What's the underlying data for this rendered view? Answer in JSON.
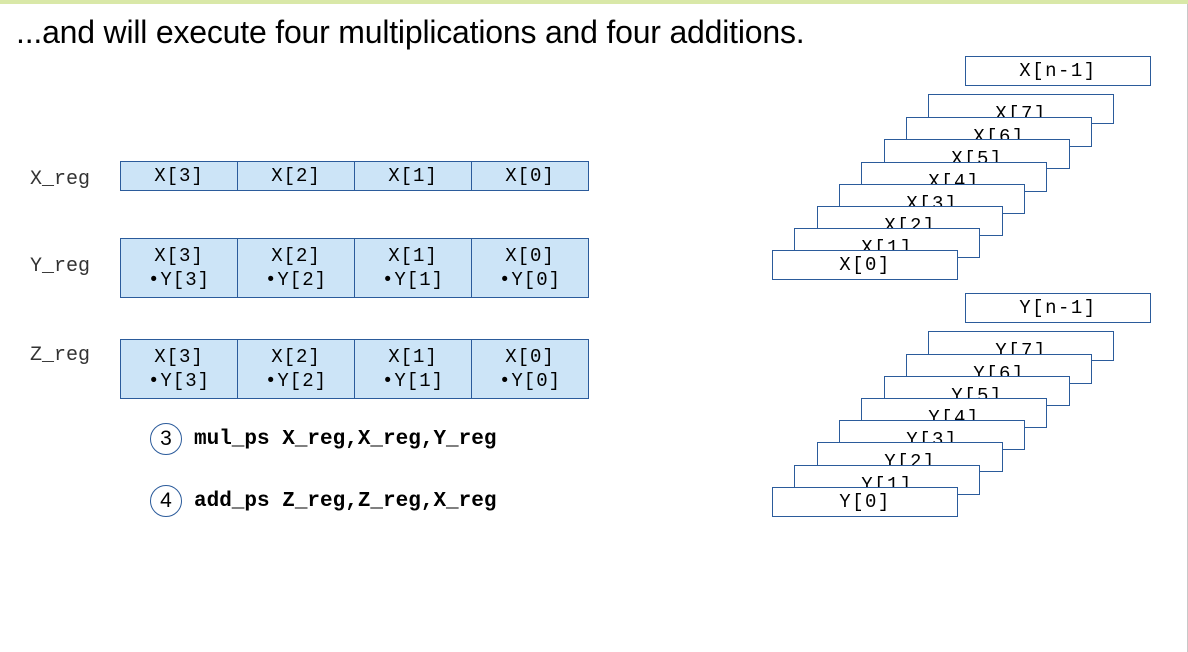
{
  "title": "...and will execute four multiplications and four additions.",
  "registers": [
    {
      "name": "X_reg",
      "cells": [
        [
          "X[3]"
        ],
        [
          "X[2]"
        ],
        [
          "X[1]"
        ],
        [
          "X[0]"
        ]
      ]
    },
    {
      "name": "Y_reg",
      "cells": [
        [
          "X[3]",
          "•Y[3]"
        ],
        [
          "X[2]",
          "•Y[2]"
        ],
        [
          "X[1]",
          "•Y[1]"
        ],
        [
          "X[0]",
          "•Y[0]"
        ]
      ]
    },
    {
      "name": "Z_reg",
      "cells": [
        [
          "X[3]",
          "•Y[3]"
        ],
        [
          "X[2]",
          "•Y[2]"
        ],
        [
          "X[1]",
          "•Y[1]"
        ],
        [
          "X[0]",
          "•Y[0]"
        ]
      ]
    }
  ],
  "steps": [
    {
      "num": "3",
      "code": "mul_ps X_reg,X_reg,Y_reg"
    },
    {
      "num": "4",
      "code": "add_ps Z_reg,Z_reg,X_reg"
    }
  ],
  "x_memory": {
    "top": "X[n-1]",
    "stack": [
      "X[7]",
      "X[6]",
      "X[5]",
      "X[4]",
      "X[3]",
      "X[2]",
      "X[1]",
      "X[0]"
    ]
  },
  "y_memory": {
    "top": "Y[n-1]",
    "stack": [
      "Y[7]",
      "Y[6]",
      "Y[5]",
      "Y[4]",
      "Y[3]",
      "Y[2]",
      "Y[1]",
      "Y[0]"
    ]
  }
}
